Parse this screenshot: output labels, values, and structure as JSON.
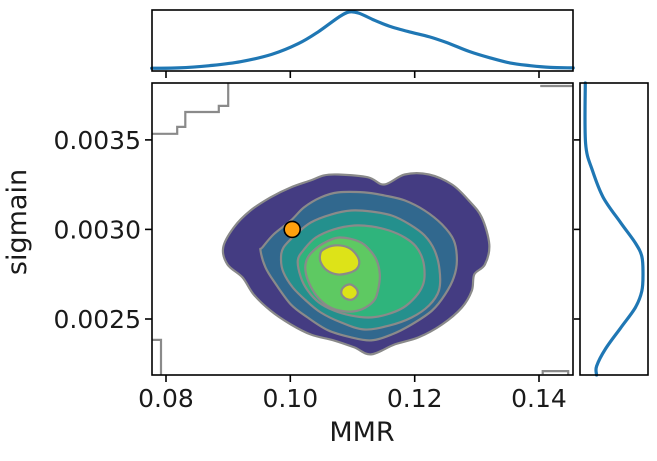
{
  "chart_data": {
    "type": "kde-joint",
    "xlabel": "MMR",
    "ylabel": "sigmain",
    "xlim": [
      0.07775,
      0.14547
    ],
    "ylim": [
      0.002187,
      0.003818
    ],
    "x_ticks": [
      0.08,
      0.1,
      0.12,
      0.14
    ],
    "x_tick_labels": [
      "0.08",
      "0.10",
      "0.12",
      "0.14"
    ],
    "y_ticks": [
      0.0025,
      0.003,
      0.0035
    ],
    "y_tick_labels": [
      "0.0025",
      "0.0030",
      "0.0035"
    ],
    "grid": false,
    "legend": false,
    "colors": {
      "kde_line": "#1f77b4",
      "contour_line": "#8a8a8a",
      "levels": [
        "#443c82",
        "#31688e",
        "#24908d",
        "#2fb47c",
        "#5ec962",
        "#dde318"
      ],
      "point_fill": "#ffa10e",
      "point_edge": "#000000",
      "spine": "#000000"
    },
    "scatter_point": {
      "x": 0.1003,
      "y": 0.003
    },
    "contour_levels": [
      {
        "level": 1,
        "color_index": 0,
        "points": [
          [
            0.1077,
            0.003307
          ],
          [
            0.1125,
            0.003291
          ],
          [
            0.1151,
            0.003251
          ],
          [
            0.1184,
            0.003307
          ],
          [
            0.1223,
            0.003307
          ],
          [
            0.126,
            0.003251
          ],
          [
            0.1287,
            0.003162
          ],
          [
            0.1308,
            0.003067
          ],
          [
            0.132,
            0.002916
          ],
          [
            0.1313,
            0.002804
          ],
          [
            0.1296,
            0.002749
          ],
          [
            0.1292,
            0.002659
          ],
          [
            0.1276,
            0.002564
          ],
          [
            0.1244,
            0.002469
          ],
          [
            0.1206,
            0.002397
          ],
          [
            0.1168,
            0.002358
          ],
          [
            0.113,
            0.002302
          ],
          [
            0.1103,
            0.002341
          ],
          [
            0.107,
            0.00238
          ],
          [
            0.1033,
            0.002413
          ],
          [
            0.1001,
            0.002469
          ],
          [
            0.0968,
            0.002547
          ],
          [
            0.0941,
            0.002637
          ],
          [
            0.0923,
            0.002732
          ],
          [
            0.0899,
            0.002804
          ],
          [
            0.0892,
            0.002899
          ],
          [
            0.0909,
            0.003011
          ],
          [
            0.0936,
            0.003106
          ],
          [
            0.0968,
            0.003179
          ],
          [
            0.1001,
            0.003235
          ],
          [
            0.1033,
            0.003274
          ],
          [
            0.1054,
            0.003302
          ]
        ]
      },
      {
        "level": 2,
        "color_index": 1,
        "points": [
          [
            0.1077,
            0.003207
          ],
          [
            0.1049,
            0.003179
          ],
          [
            0.1022,
            0.003123
          ],
          [
            0.1001,
            0.00305
          ],
          [
            0.0973,
            0.002972
          ],
          [
            0.0955,
            0.002899
          ],
          [
            0.0952,
            0.002883
          ],
          [
            0.096,
            0.002788
          ],
          [
            0.0977,
            0.002693
          ],
          [
            0.1001,
            0.002581
          ],
          [
            0.1028,
            0.002508
          ],
          [
            0.1061,
            0.002436
          ],
          [
            0.1098,
            0.002397
          ],
          [
            0.113,
            0.00238
          ],
          [
            0.1163,
            0.002413
          ],
          [
            0.1195,
            0.002469
          ],
          [
            0.1228,
            0.002547
          ],
          [
            0.1249,
            0.002637
          ],
          [
            0.1263,
            0.002732
          ],
          [
            0.1268,
            0.002827
          ],
          [
            0.1263,
            0.002939
          ],
          [
            0.1244,
            0.003028
          ],
          [
            0.1216,
            0.003106
          ],
          [
            0.1184,
            0.003162
          ],
          [
            0.1151,
            0.00319
          ],
          [
            0.1119,
            0.003207
          ]
        ]
      },
      {
        "level": 3,
        "color_index": 2,
        "points": [
          [
            0.1098,
            0.003106
          ],
          [
            0.1066,
            0.003084
          ],
          [
            0.1033,
            0.003039
          ],
          [
            0.1009,
            0.002972
          ],
          [
            0.0989,
            0.002899
          ],
          [
            0.0985,
            0.002832
          ],
          [
            0.0989,
            0.00276
          ],
          [
            0.1004,
            0.002676
          ],
          [
            0.1025,
            0.002603
          ],
          [
            0.1049,
            0.002536
          ],
          [
            0.1082,
            0.00248
          ],
          [
            0.1119,
            0.002441
          ],
          [
            0.1159,
            0.002463
          ],
          [
            0.1195,
            0.002508
          ],
          [
            0.1223,
            0.002575
          ],
          [
            0.1239,
            0.002659
          ],
          [
            0.124,
            0.002776
          ],
          [
            0.1232,
            0.002883
          ],
          [
            0.1216,
            0.002966
          ],
          [
            0.1192,
            0.003028
          ],
          [
            0.1163,
            0.003078
          ],
          [
            0.113,
            0.0031
          ]
        ]
      },
      {
        "level": 4,
        "color_index": 3,
        "points": [
          [
            0.1103,
            0.003022
          ],
          [
            0.107,
            0.003
          ],
          [
            0.1041,
            0.002955
          ],
          [
            0.1022,
            0.002888
          ],
          [
            0.1012,
            0.002827
          ],
          [
            0.1017,
            0.002732
          ],
          [
            0.1028,
            0.002659
          ],
          [
            0.1046,
            0.002592
          ],
          [
            0.107,
            0.002547
          ],
          [
            0.1098,
            0.002519
          ],
          [
            0.1126,
            0.002508
          ],
          [
            0.1155,
            0.002525
          ],
          [
            0.1182,
            0.002564
          ],
          [
            0.1202,
            0.002626
          ],
          [
            0.1213,
            0.002687
          ],
          [
            0.1216,
            0.002749
          ],
          [
            0.1213,
            0.002832
          ],
          [
            0.1202,
            0.002905
          ],
          [
            0.1184,
            0.002955
          ],
          [
            0.1159,
            0.002994
          ],
          [
            0.113,
            0.003017
          ]
        ]
      },
      {
        "level": 5,
        "color_index": 4,
        "points": [
          [
            0.1079,
            0.002955
          ],
          [
            0.1053,
            0.002922
          ],
          [
            0.1033,
            0.002866
          ],
          [
            0.1025,
            0.002816
          ],
          [
            0.1025,
            0.002754
          ],
          [
            0.1032,
            0.002687
          ],
          [
            0.1043,
            0.002626
          ],
          [
            0.1059,
            0.002575
          ],
          [
            0.1079,
            0.002547
          ],
          [
            0.1102,
            0.002542
          ],
          [
            0.1121,
            0.002564
          ],
          [
            0.1136,
            0.002609
          ],
          [
            0.1142,
            0.002676
          ],
          [
            0.1144,
            0.002749
          ],
          [
            0.1139,
            0.002827
          ],
          [
            0.1127,
            0.002888
          ],
          [
            0.111,
            0.002933
          ]
        ]
      },
      {
        "level": 6,
        "color_index": 5,
        "points": [
          [
            0.1053,
            0.002888
          ],
          [
            0.1072,
            0.002911
          ],
          [
            0.1093,
            0.002899
          ],
          [
            0.1106,
            0.00286
          ],
          [
            0.1111,
            0.002816
          ],
          [
            0.1106,
            0.002777
          ],
          [
            0.1091,
            0.002754
          ],
          [
            0.1075,
            0.002749
          ],
          [
            0.1059,
            0.002771
          ],
          [
            0.1049,
            0.002816
          ],
          [
            0.1048,
            0.00286
          ]
        ]
      },
      {
        "level": 6,
        "color_index": 5,
        "points": [
          [
            0.1085,
            0.002676
          ],
          [
            0.1096,
            0.002693
          ],
          [
            0.1106,
            0.00267
          ],
          [
            0.1108,
            0.002637
          ],
          [
            0.11,
            0.002609
          ],
          [
            0.1089,
            0.002614
          ],
          [
            0.1082,
            0.002642
          ]
        ]
      }
    ],
    "clip_fragments": [
      [
        [
          0.09,
          0.003818
        ],
        [
          0.09,
          0.00369
        ],
        [
          0.0885,
          0.00369
        ],
        [
          0.0885,
          0.003656
        ],
        [
          0.0831,
          0.003656
        ],
        [
          0.0831,
          0.003573
        ],
        [
          0.0818,
          0.003573
        ],
        [
          0.0818,
          0.003534
        ],
        [
          0.0777,
          0.003534
        ]
      ],
      [
        [
          0.0777,
          0.002383
        ],
        [
          0.0792,
          0.002383
        ],
        [
          0.0792,
          0.002187
        ]
      ],
      [
        [
          0.1406,
          0.002192
        ],
        [
          0.1406,
          0.002209
        ],
        [
          0.1447,
          0.002209
        ],
        [
          0.1447,
          0.002187
        ]
      ],
      [
        [
          0.1402,
          0.003801
        ],
        [
          0.1455,
          0.003801
        ]
      ]
    ],
    "marginal_top": {
      "axis": "x",
      "points": [
        [
          0.0777,
          0.005
        ],
        [
          0.082,
          0.01
        ],
        [
          0.087,
          0.05
        ],
        [
          0.092,
          0.12
        ],
        [
          0.097,
          0.25
        ],
        [
          0.1013,
          0.44
        ],
        [
          0.1045,
          0.65
        ],
        [
          0.1078,
          0.91
        ],
        [
          0.1094,
          1.0
        ],
        [
          0.111,
          0.98
        ],
        [
          0.1134,
          0.86
        ],
        [
          0.1159,
          0.75
        ],
        [
          0.1191,
          0.65
        ],
        [
          0.1224,
          0.56
        ],
        [
          0.1256,
          0.44
        ],
        [
          0.1288,
          0.3
        ],
        [
          0.1321,
          0.19
        ],
        [
          0.1353,
          0.1
        ],
        [
          0.1386,
          0.05
        ],
        [
          0.1418,
          0.02
        ],
        [
          0.1455,
          0.01
        ]
      ]
    },
    "marginal_right": {
      "axis": "y",
      "points": [
        [
          0.003818,
          0.03
        ],
        [
          0.00348,
          0.035
        ],
        [
          0.00333,
          0.15
        ],
        [
          0.00318,
          0.33
        ],
        [
          0.00304,
          0.62
        ],
        [
          0.002925,
          0.87
        ],
        [
          0.00285,
          0.98
        ],
        [
          0.002753,
          1.0
        ],
        [
          0.002655,
          0.98
        ],
        [
          0.002563,
          0.87
        ],
        [
          0.002448,
          0.62
        ],
        [
          0.002333,
          0.37
        ],
        [
          0.002236,
          0.22
        ],
        [
          0.002187,
          0.22
        ]
      ]
    }
  }
}
